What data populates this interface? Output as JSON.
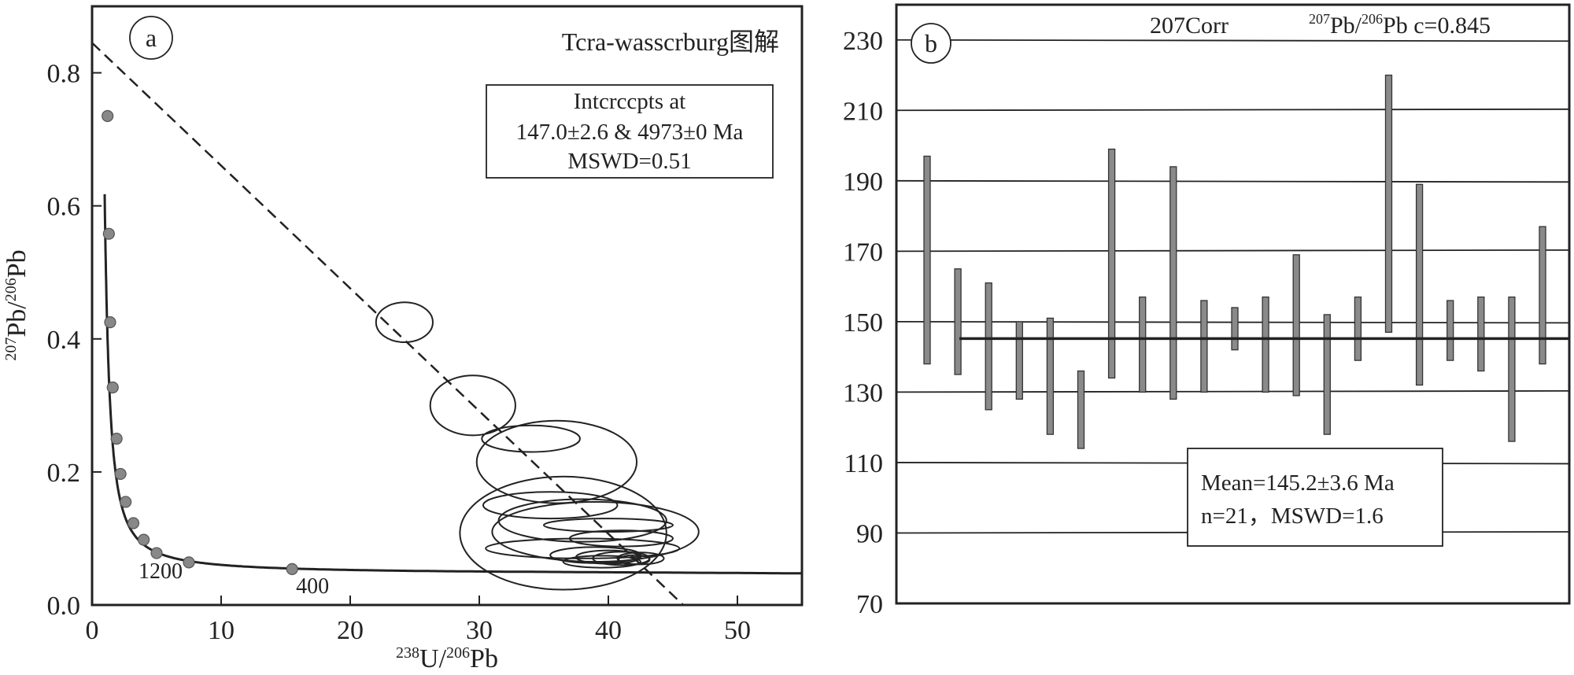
{
  "chart_data": [
    {
      "type": "scatter",
      "panel_label": "a",
      "title": "Tcra-wasscrburg图解",
      "xlabel": {
        "sup": "238",
        "base1": "U/",
        "sup2": "206",
        "base2": "Pb"
      },
      "ylabel": {
        "sup": "207",
        "base1": "Pb/",
        "sup2": "206",
        "base2": "Pb"
      },
      "xlim": [
        0,
        55
      ],
      "ylim": [
        0,
        0.9
      ],
      "xticks": [
        0,
        10,
        20,
        30,
        40,
        50
      ],
      "yticks": [
        0.0,
        0.2,
        0.4,
        0.6,
        0.8
      ],
      "xtick_labels": [
        "0",
        "10",
        "20",
        "30",
        "40",
        "50"
      ],
      "ytick_labels": [
        "0.0",
        "0.2",
        "0.4",
        "0.6",
        "0.8"
      ],
      "concordia_markers": [
        [
          1.2,
          0.735
        ],
        [
          1.3,
          0.558
        ],
        [
          1.4,
          0.425
        ],
        [
          1.6,
          0.327
        ],
        [
          1.9,
          0.25
        ],
        [
          2.2,
          0.197
        ],
        [
          2.6,
          0.155
        ],
        [
          3.2,
          0.123
        ],
        [
          4.0,
          0.098
        ],
        [
          5.0,
          0.078
        ],
        [
          7.5,
          0.064
        ],
        [
          15.5,
          0.054
        ]
      ],
      "concordia_age_labels": [
        {
          "text": "1200",
          "x": 3.6,
          "y": 0.04
        },
        {
          "text": "400",
          "x": 15.8,
          "y": 0.018
        }
      ],
      "discordia_line": {
        "from": [
          0,
          0.845
        ],
        "to": [
          45.8,
          0
        ]
      },
      "error_ellipses": [
        {
          "cx": 24.2,
          "cy": 0.425,
          "rx": 2.2,
          "ry": 0.03
        },
        {
          "cx": 29.5,
          "cy": 0.3,
          "rx": 3.3,
          "ry": 0.045
        },
        {
          "cx": 34.0,
          "cy": 0.25,
          "rx": 3.8,
          "ry": 0.02
        },
        {
          "cx": 36.0,
          "cy": 0.215,
          "rx": 6.2,
          "ry": 0.062
        },
        {
          "cx": 35.5,
          "cy": 0.15,
          "rx": 5.2,
          "ry": 0.02
        },
        {
          "cx": 38.0,
          "cy": 0.127,
          "rx": 6.5,
          "ry": 0.032
        },
        {
          "cx": 39.0,
          "cy": 0.11,
          "rx": 8.0,
          "ry": 0.045
        },
        {
          "cx": 36.5,
          "cy": 0.108,
          "rx": 8.0,
          "ry": 0.085
        },
        {
          "cx": 38.0,
          "cy": 0.085,
          "rx": 7.5,
          "ry": 0.015
        },
        {
          "cx": 40.0,
          "cy": 0.12,
          "rx": 5.0,
          "ry": 0.01
        },
        {
          "cx": 41.0,
          "cy": 0.1,
          "rx": 4.0,
          "ry": 0.012
        },
        {
          "cx": 39.0,
          "cy": 0.075,
          "rx": 3.5,
          "ry": 0.012
        },
        {
          "cx": 40.0,
          "cy": 0.072,
          "rx": 2.5,
          "ry": 0.01
        },
        {
          "cx": 41.0,
          "cy": 0.07,
          "rx": 2.2,
          "ry": 0.01
        },
        {
          "cx": 42.5,
          "cy": 0.07,
          "rx": 1.8,
          "ry": 0.009
        },
        {
          "cx": 42.0,
          "cy": 0.068,
          "rx": 1.2,
          "ry": 0.007
        },
        {
          "cx": 39.5,
          "cy": 0.065,
          "rx": 3.0,
          "ry": 0.009
        }
      ],
      "annotation": {
        "line1": "Intcrccpts at",
        "line2": "147.0±2.6 & 4973±0 Ma",
        "line3": "MSWD=0.51"
      }
    },
    {
      "type": "bar",
      "panel_label": "b",
      "title": "207Corr",
      "title_right": {
        "sup": "207",
        "base1": "Pb/",
        "sup2": "206",
        "base2": "Pb c=0.845"
      },
      "ylim": [
        70,
        240
      ],
      "yticks": [
        70,
        90,
        110,
        130,
        150,
        170,
        190,
        210,
        230
      ],
      "ytick_labels": [
        "70",
        "90",
        "110",
        "130",
        "150",
        "170",
        "190",
        "210",
        "230"
      ],
      "mean": 145.2,
      "error_bars": [
        {
          "low": 138,
          "high": 197
        },
        {
          "low": 135,
          "high": 165
        },
        {
          "low": 125,
          "high": 161
        },
        {
          "low": 128,
          "high": 150
        },
        {
          "low": 118,
          "high": 151
        },
        {
          "low": 114,
          "high": 136
        },
        {
          "low": 134,
          "high": 199
        },
        {
          "low": 130,
          "high": 157
        },
        {
          "low": 128,
          "high": 194
        },
        {
          "low": 130,
          "high": 156
        },
        {
          "low": 142,
          "high": 154
        },
        {
          "low": 130,
          "high": 157
        },
        {
          "low": 129,
          "high": 169
        },
        {
          "low": 118,
          "high": 152
        },
        {
          "low": 139,
          "high": 157
        },
        {
          "low": 147,
          "high": 220
        },
        {
          "low": 132,
          "high": 189
        },
        {
          "low": 139,
          "high": 156
        },
        {
          "low": 136,
          "high": 157
        },
        {
          "low": 116,
          "high": 157
        },
        {
          "low": 138,
          "high": 177
        }
      ],
      "annotation": {
        "line1": "Mean=145.2±3.6 Ma",
        "line2": "n=21，MSWD=1.6"
      }
    }
  ]
}
